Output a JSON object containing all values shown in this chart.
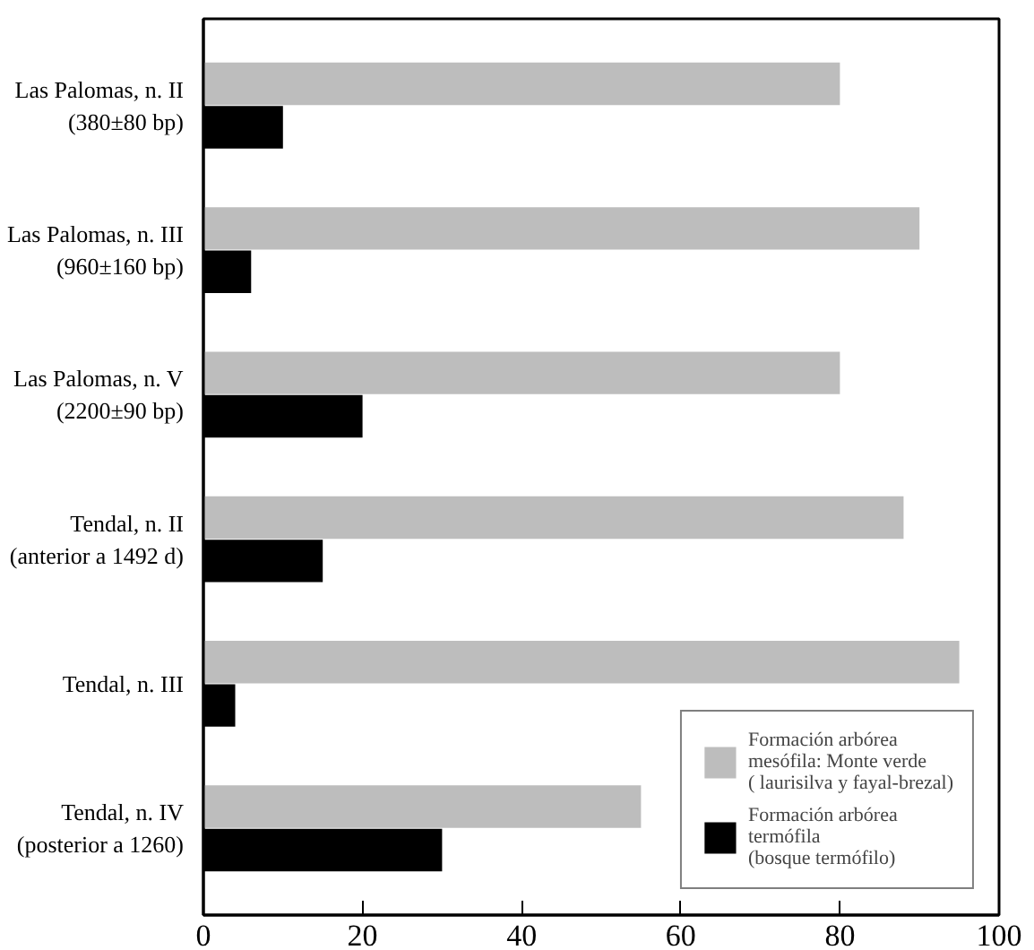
{
  "chart_data": {
    "type": "bar",
    "orientation": "horizontal",
    "categories": [
      "Las Palomas, n. II\n(380±80 bp)",
      "Las Palomas, n. III\n(960±160 bp)",
      "Las Palomas, n. V\n(2200±90 bp)",
      "Tendal, n. II\n(anterior a 1492 d)",
      "Tendal, n. III",
      "Tendal, n. IV\n(posterior a 1260)"
    ],
    "series": [
      {
        "name": "Formación arbórea\nmesófila: Monte verde\n( laurisilva y fayal-brezal)",
        "color": "#bdbdbd",
        "values": [
          80,
          90,
          80,
          88,
          95,
          55
        ]
      },
      {
        "name": "Formación arbórea\ntermófila\n(bosque termófilo)",
        "color": "#000000",
        "values": [
          10,
          6,
          20,
          15,
          4,
          30
        ]
      }
    ],
    "xlim": [
      0,
      100
    ],
    "xticks": [
      0,
      20,
      40,
      60,
      80,
      100
    ],
    "grid": false,
    "legend": "bottom right"
  }
}
